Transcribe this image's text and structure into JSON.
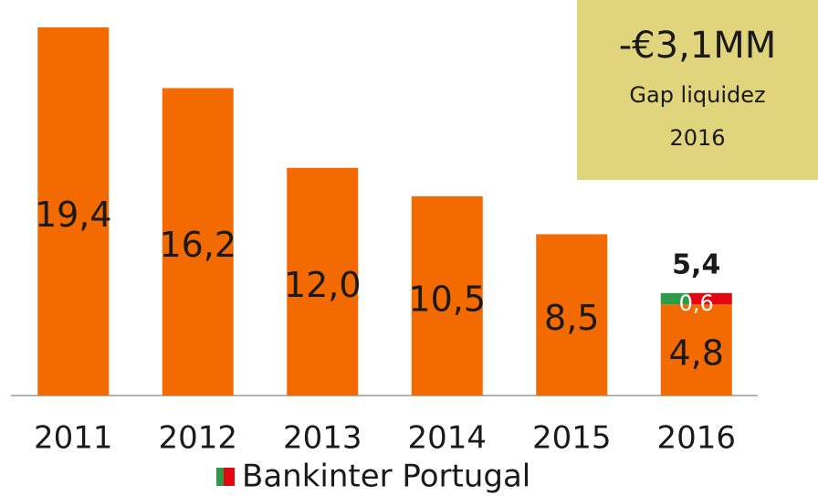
{
  "chart_data": {
    "type": "bar",
    "categories": [
      "2011",
      "2012",
      "2013",
      "2014",
      "2015",
      "2016"
    ],
    "series": [
      {
        "color": "#f26a00",
        "values": [
          19.4,
          16.2,
          12.0,
          10.5,
          8.5,
          4.8
        ],
        "value_labels": [
          "19,4",
          "16,2",
          "12,0",
          "10,5",
          "8,5",
          "4,8"
        ]
      },
      {
        "name": "Bankinter Portugal",
        "colors": [
          "#2e9b48",
          "#e30613"
        ],
        "values": [
          null,
          null,
          null,
          null,
          null,
          0.6
        ],
        "value_labels": [
          null,
          null,
          null,
          null,
          null,
          "0,6"
        ]
      }
    ],
    "total_labels": [
      null,
      null,
      null,
      null,
      null,
      "5,4"
    ],
    "ylim": [
      0,
      19.4
    ],
    "callout": {
      "title": "-€3,1MM",
      "lines": [
        "Gap liquidez",
        "2016"
      ],
      "color": "#e0d47c"
    }
  }
}
